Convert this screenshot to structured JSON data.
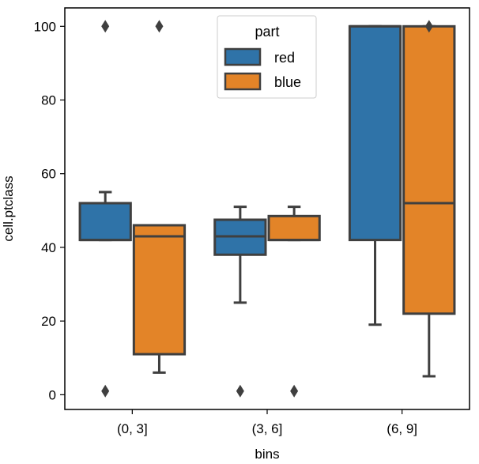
{
  "chart_data": {
    "type": "box",
    "xlabel": "bins",
    "ylabel": "cell.ptclass",
    "categories": [
      "(0, 3]",
      "(3, 6]",
      "(6, 9]"
    ],
    "ylim": [
      -4,
      105
    ],
    "yticks": [
      0,
      20,
      40,
      60,
      80,
      100
    ],
    "grid": false,
    "legend": {
      "title": "part",
      "position": "top-center"
    },
    "series": [
      {
        "name": "red",
        "color": "#2f73a8",
        "boxes": [
          {
            "whisker_low": 42,
            "q1": 42,
            "median": 42,
            "q3": 52,
            "whisker_high": 55,
            "outliers": [
              100,
              1
            ]
          },
          {
            "whisker_low": 25,
            "q1": 38,
            "median": 43,
            "q3": 47.5,
            "whisker_high": 51,
            "outliers": [
              1
            ]
          },
          {
            "whisker_low": 19,
            "q1": 42,
            "median": 100,
            "q3": 100,
            "whisker_high": 100,
            "outliers": []
          }
        ]
      },
      {
        "name": "blue",
        "color": "#e38428",
        "boxes": [
          {
            "whisker_low": 6,
            "q1": 11,
            "median": 43,
            "q3": 46,
            "whisker_high": 46,
            "outliers": [
              100
            ]
          },
          {
            "whisker_low": 42,
            "q1": 42,
            "median": 42,
            "q3": 48.5,
            "whisker_high": 51,
            "outliers": [
              1
            ]
          },
          {
            "whisker_low": 5,
            "q1": 22,
            "median": 52,
            "q3": 100,
            "whisker_high": 100,
            "outliers": [
              100
            ]
          }
        ]
      }
    ]
  }
}
